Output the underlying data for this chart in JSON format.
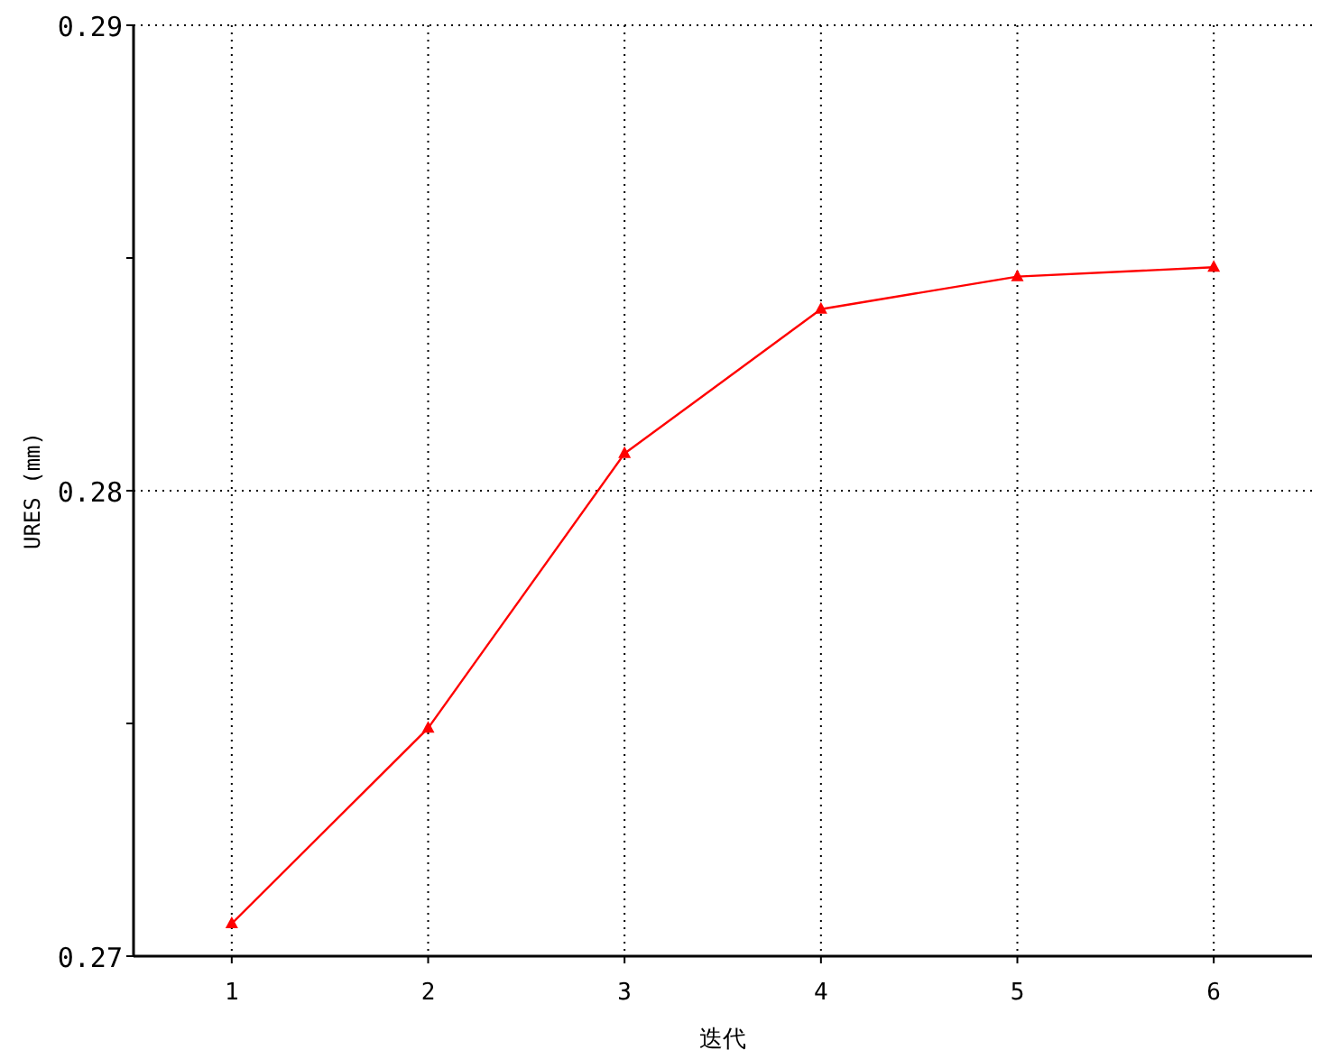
{
  "chart_data": {
    "type": "line",
    "xlabel": "迭代",
    "ylabel": "URES (mm)",
    "x": [
      1,
      2,
      3,
      4,
      5,
      6
    ],
    "series": [
      {
        "color": "#ff0000",
        "values": [
          0.2707,
          0.2749,
          0.2808,
          0.2839,
          0.2846,
          0.2848
        ]
      }
    ],
    "xlim": [
      0.5,
      6.5
    ],
    "xticks": [
      1,
      2,
      3,
      4,
      5,
      6
    ],
    "ylim": [
      0.27,
      0.29
    ],
    "yticks": [
      0.27,
      {
        "value": 0.275,
        "label": null
      },
      0.28,
      {
        "value": 0.285,
        "label": null
      },
      0.29
    ],
    "grid": true,
    "marker": "triangle",
    "line_style": "solid"
  }
}
